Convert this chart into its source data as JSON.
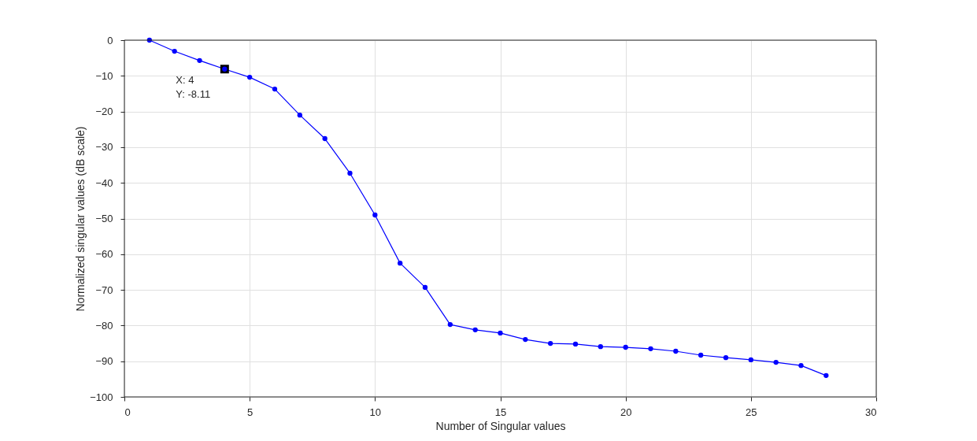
{
  "chart_data": {
    "type": "line",
    "xlabel": "Number of Singular values",
    "ylabel": "Normalized singular values (dB scale)",
    "x": [
      1,
      2,
      3,
      4,
      5,
      6,
      7,
      8,
      9,
      10,
      11,
      12,
      13,
      14,
      15,
      16,
      17,
      18,
      19,
      20,
      21,
      22,
      23,
      24,
      25,
      26,
      27,
      28
    ],
    "series": [
      {
        "color": "#0000ff",
        "values": [
          0,
          -3.1,
          -5.7,
          -8.11,
          -10.4,
          -13.7,
          -21,
          -27.6,
          -37.3,
          -49,
          -62.5,
          -69.3,
          -79.7,
          -81.2,
          -82.1,
          -83.9,
          -85,
          -85.2,
          -85.9,
          -86.1,
          -86.5,
          -87.2,
          -88.3,
          -89,
          -89.6,
          -90.3,
          -91.2,
          -94
        ]
      }
    ],
    "xlim": [
      0,
      30
    ],
    "xticks": [
      0,
      5,
      10,
      15,
      20,
      25,
      30
    ],
    "ylim": [
      -100,
      0
    ],
    "yticks": [
      -100,
      -90,
      -80,
      -70,
      -60,
      -50,
      -40,
      -30,
      -20,
      -10,
      0
    ],
    "grid": true,
    "marker": "circle",
    "line_style": "solid",
    "annotations": [
      {
        "text": "X: 4\nY: -8.11",
        "x": 4,
        "y": -8.11
      }
    ]
  }
}
